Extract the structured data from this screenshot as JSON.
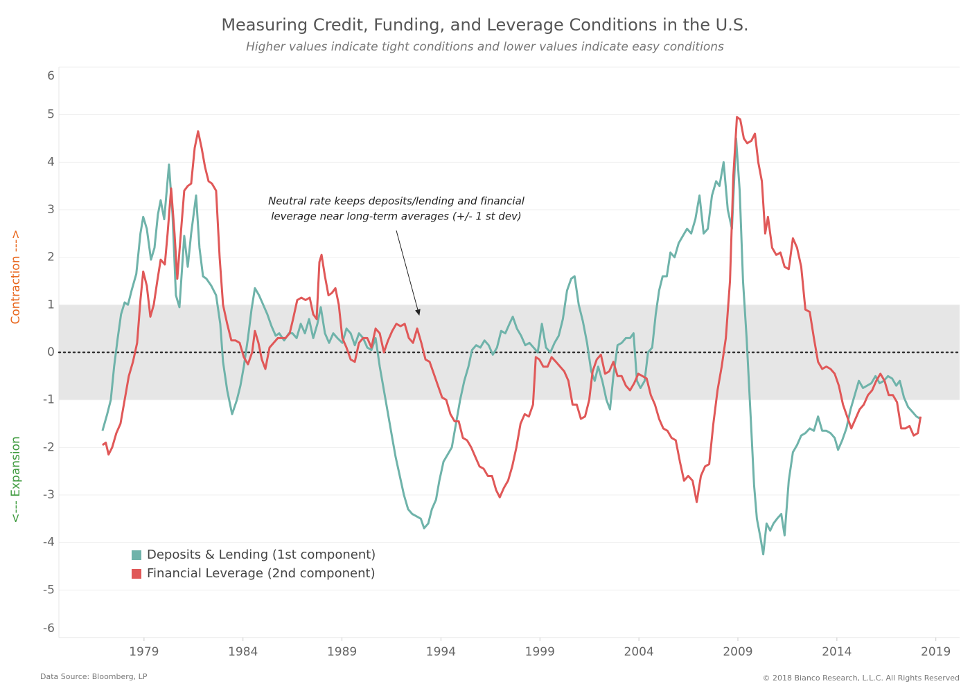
{
  "chart_data": {
    "type": "line",
    "title": "Measuring Credit, Funding, and Leverage Conditions in the U.S.",
    "subtitle": "Higher values indicate tight conditions and lower values indicate easy conditions",
    "y_label_upper": "Contraction --->",
    "y_label_lower": "<--- Expansion",
    "annotation": [
      "Neutral rate keeps deposits/lending and financial",
      "leverage near long-term averages (+/- 1 st dev)"
    ],
    "source": "Data Source: Bloomberg, LP",
    "copyright": "© 2018 Bianco Research, L.L.C. All Rights Reserved",
    "xlim": [
      1974.7,
      2020.2
    ],
    "xticks": [
      1979,
      1984,
      1989,
      1994,
      1999,
      2004,
      2009,
      2014,
      2019
    ],
    "ylim": [
      -6,
      6
    ],
    "yticks": [
      -6,
      -5,
      -4,
      -3,
      -2,
      -1,
      0,
      1,
      2,
      3,
      4,
      5,
      6
    ],
    "band": [
      -1,
      1
    ],
    "reference_line": 0,
    "grid": true,
    "legend": "lower-left",
    "series": [
      {
        "name": "Deposits & Lending (1st component)",
        "color": "#6fb3aa",
        "x": [
          1976.9,
          1977.14,
          1977.32,
          1977.49,
          1977.67,
          1977.84,
          1978.02,
          1978.19,
          1978.37,
          1978.61,
          1978.82,
          1978.96,
          1979.14,
          1979.35,
          1979.53,
          1979.7,
          1979.84,
          1980.02,
          1980.26,
          1980.44,
          1980.61,
          1980.79,
          1981.03,
          1981.21,
          1981.38,
          1981.63,
          1981.8,
          1981.98,
          1982.15,
          1982.4,
          1982.64,
          1982.85,
          1982.99,
          1983.2,
          1983.45,
          1983.69,
          1983.87,
          1984.04,
          1984.25,
          1984.43,
          1984.6,
          1984.81,
          1985.02,
          1985.23,
          1985.44,
          1985.65,
          1985.83,
          1986.08,
          1986.32,
          1986.5,
          1986.71,
          1986.92,
          1987.13,
          1987.34,
          1987.55,
          1987.76,
          1987.93,
          1988.14,
          1988.35,
          1988.56,
          1988.77,
          1989.02,
          1989.23,
          1989.44,
          1989.65,
          1989.86,
          1990.07,
          1990.28,
          1990.49,
          1990.7,
          1990.91,
          1991.12,
          1991.33,
          1991.54,
          1991.71,
          1991.92,
          1992.13,
          1992.34,
          1992.55,
          1992.77,
          1992.98,
          1993.15,
          1993.36,
          1993.54,
          1993.75,
          1993.92,
          1994.13,
          1994.34,
          1994.55,
          1994.76,
          1994.97,
          1995.18,
          1995.39,
          1995.57,
          1995.78,
          1995.99,
          1996.2,
          1996.41,
          1996.62,
          1996.83,
          1997.04,
          1997.25,
          1997.46,
          1997.63,
          1997.84,
          1998.05,
          1998.26,
          1998.47,
          1998.68,
          1998.89,
          1999.1,
          1999.31,
          1999.53,
          1999.74,
          1999.95,
          2000.16,
          2000.37,
          2000.58,
          2000.75,
          2000.96,
          2001.17,
          2001.38,
          2001.59,
          2001.77,
          2001.94,
          2002.15,
          2002.36,
          2002.54,
          2002.71,
          2002.92,
          2003.13,
          2003.34,
          2003.55,
          2003.73,
          2003.9,
          2004.08,
          2004.29,
          2004.46,
          2004.67,
          2004.85,
          2005.02,
          2005.2,
          2005.41,
          2005.59,
          2005.8,
          2006.01,
          2006.22,
          2006.43,
          2006.64,
          2006.85,
          2007.06,
          2007.27,
          2007.48,
          2007.69,
          2007.9,
          2008.07,
          2008.28,
          2008.49,
          2008.7,
          2008.91,
          2009.09,
          2009.26,
          2009.44,
          2009.65,
          2009.82,
          2009.96,
          2010.14,
          2010.28,
          2010.45,
          2010.63,
          2010.8,
          2010.98,
          2011.19,
          2011.36,
          2011.57,
          2011.78,
          2011.99,
          2012.2,
          2012.41,
          2012.63,
          2012.84,
          2013.05,
          2013.26,
          2013.47,
          2013.68,
          2013.89,
          2014.06,
          2014.27,
          2014.48,
          2014.69,
          2014.9,
          2015.11,
          2015.32,
          2015.53,
          2015.74,
          2015.95,
          2016.16,
          2016.37,
          2016.58,
          2016.79,
          2017,
          2017.18,
          2017.39,
          2017.6,
          2017.81,
          2018.02,
          2018.23
        ],
        "values": [
          -1.65,
          -1.3,
          -1,
          -0.3,
          0.3,
          0.8,
          1.05,
          1,
          1.3,
          1.65,
          2.5,
          2.85,
          2.6,
          1.95,
          2.2,
          2.9,
          3.2,
          2.8,
          3.95,
          2.9,
          1.2,
          0.95,
          2.45,
          1.8,
          2.5,
          3.3,
          2.2,
          1.6,
          1.55,
          1.4,
          1.2,
          0.6,
          -0.2,
          -0.8,
          -1.3,
          -1,
          -0.7,
          -0.3,
          0.3,
          0.9,
          1.35,
          1.2,
          1,
          0.8,
          0.55,
          0.35,
          0.4,
          0.25,
          0.4,
          0.4,
          0.3,
          0.6,
          0.4,
          0.7,
          0.3,
          0.6,
          0.95,
          0.4,
          0.2,
          0.4,
          0.3,
          0.2,
          0.5,
          0.4,
          0.15,
          0.4,
          0.3,
          0.1,
          0.05,
          0.3,
          -0.3,
          -0.8,
          -1.3,
          -1.8,
          -2.2,
          -2.6,
          -3,
          -3.3,
          -3.4,
          -3.45,
          -3.5,
          -3.7,
          -3.6,
          -3.3,
          -3.1,
          -2.7,
          -2.3,
          -2.15,
          -2,
          -1.5,
          -1,
          -0.6,
          -0.3,
          0.05,
          0.15,
          0.1,
          0.25,
          0.15,
          -0.05,
          0.1,
          0.45,
          0.4,
          0.6,
          0.75,
          0.5,
          0.35,
          0.15,
          0.2,
          0.1,
          0,
          0.6,
          0.1,
          0,
          0.2,
          0.35,
          0.7,
          1.3,
          1.55,
          1.6,
          1,
          0.65,
          0.2,
          -0.4,
          -0.6,
          -0.3,
          -0.6,
          -1,
          -1.2,
          -0.5,
          0.15,
          0.2,
          0.3,
          0.3,
          0.4,
          -0.6,
          -0.75,
          -0.6,
          0,
          0.1,
          0.8,
          1.3,
          1.6,
          1.6,
          2.1,
          2,
          2.3,
          2.45,
          2.6,
          2.5,
          2.8,
          3.3,
          2.5,
          2.6,
          3.3,
          3.6,
          3.5,
          4,
          3,
          2.6,
          4.5,
          3.4,
          1.5,
          0.3,
          -1.4,
          -2.8,
          -3.5,
          -3.9,
          -4.25,
          -3.6,
          -3.75,
          -3.6,
          -3.5,
          -3.4,
          -3.85,
          -2.7,
          -2.1,
          -1.95,
          -1.75,
          -1.7,
          -1.6,
          -1.65,
          -1.35,
          -1.65,
          -1.65,
          -1.7,
          -1.8,
          -2.05,
          -1.85,
          -1.6,
          -1.2,
          -0.9,
          -0.6,
          -0.75,
          -0.7,
          -0.65,
          -0.5,
          -0.65,
          -0.6,
          -0.5,
          -0.55,
          -0.7,
          -0.6,
          -0.95,
          -1.15,
          -1.25,
          -1.35,
          -1.4
        ]
      },
      {
        "name": "Financial Leverage (2nd component)",
        "color": "#e05858",
        "x": [
          1976.9,
          1977.07,
          1977.21,
          1977.39,
          1977.6,
          1977.81,
          1978.02,
          1978.23,
          1978.44,
          1978.65,
          1978.82,
          1978.96,
          1979.14,
          1979.32,
          1979.49,
          1979.67,
          1979.84,
          1980.05,
          1980.19,
          1980.37,
          1980.54,
          1980.68,
          1980.86,
          1981.03,
          1981.21,
          1981.38,
          1981.56,
          1981.73,
          1981.91,
          1982.08,
          1982.26,
          1982.43,
          1982.64,
          1982.82,
          1982.99,
          1983.2,
          1983.41,
          1983.62,
          1983.83,
          1984.04,
          1984.25,
          1984.46,
          1984.6,
          1984.78,
          1984.95,
          1985.13,
          1985.34,
          1985.55,
          1985.76,
          1985.97,
          1986.15,
          1986.36,
          1986.53,
          1986.74,
          1986.95,
          1987.16,
          1987.37,
          1987.55,
          1987.72,
          1987.86,
          1987.97,
          1988.14,
          1988.32,
          1988.49,
          1988.67,
          1988.84,
          1989.02,
          1989.23,
          1989.44,
          1989.65,
          1989.86,
          1990.07,
          1990.28,
          1990.49,
          1990.7,
          1990.91,
          1991.12,
          1991.33,
          1991.54,
          1991.75,
          1991.96,
          1992.17,
          1992.38,
          1992.59,
          1992.8,
          1993.01,
          1993.22,
          1993.43,
          1993.64,
          1993.85,
          1994.06,
          1994.27,
          1994.48,
          1994.69,
          1994.9,
          1995.11,
          1995.32,
          1995.53,
          1995.74,
          1995.95,
          1996.16,
          1996.37,
          1996.58,
          1996.79,
          1996.97,
          1997.18,
          1997.39,
          1997.6,
          1997.81,
          1998.02,
          1998.23,
          1998.44,
          1998.65,
          1998.79,
          1998.97,
          1999.17,
          1999.39,
          1999.59,
          1999.81,
          2000.02,
          2000.23,
          2000.44,
          2000.65,
          2000.86,
          2001.07,
          2001.28,
          2001.49,
          2001.66,
          2001.87,
          2002.08,
          2002.29,
          2002.5,
          2002.71,
          2002.92,
          2003.13,
          2003.34,
          2003.55,
          2003.76,
          2003.97,
          2004.18,
          2004.39,
          2004.6,
          2004.81,
          2005.02,
          2005.23,
          2005.44,
          2005.65,
          2005.86,
          2006.07,
          2006.28,
          2006.49,
          2006.71,
          2006.92,
          2007.13,
          2007.34,
          2007.55,
          2007.76,
          2007.97,
          2008.18,
          2008.39,
          2008.6,
          2008.77,
          2008.95,
          2009.12,
          2009.3,
          2009.47,
          2009.68,
          2009.86,
          2010.03,
          2010.21,
          2010.38,
          2010.52,
          2010.73,
          2010.94,
          2011.15,
          2011.36,
          2011.57,
          2011.78,
          2011.99,
          2012.2,
          2012.41,
          2012.63,
          2012.84,
          2013.05,
          2013.26,
          2013.47,
          2013.68,
          2013.89,
          2014.1,
          2014.31,
          2014.52,
          2014.73,
          2014.94,
          2015.15,
          2015.36,
          2015.57,
          2015.78,
          2015.99,
          2016.2,
          2016.41,
          2016.62,
          2016.83,
          2017.04,
          2017.25,
          2017.46,
          2017.67,
          2017.88,
          2018.09,
          2018.23
        ],
        "values": [
          -1.95,
          -1.9,
          -2.15,
          -2,
          -1.7,
          -1.5,
          -1,
          -0.5,
          -0.2,
          0.2,
          1.1,
          1.7,
          1.4,
          0.75,
          1,
          1.5,
          1.95,
          1.85,
          2.5,
          3.45,
          2.5,
          1.55,
          2.5,
          3.4,
          3.5,
          3.55,
          4.3,
          4.65,
          4.3,
          3.9,
          3.6,
          3.55,
          3.4,
          2,
          1,
          0.6,
          0.25,
          0.25,
          0.2,
          -0.1,
          -0.25,
          0,
          0.45,
          0.2,
          -0.15,
          -0.35,
          0.1,
          0.2,
          0.3,
          0.3,
          0.3,
          0.4,
          0.7,
          1.1,
          1.15,
          1.1,
          1.15,
          0.8,
          0.7,
          1.9,
          2.05,
          1.6,
          1.2,
          1.25,
          1.35,
          1,
          0.3,
          0.1,
          -0.15,
          -0.2,
          0.2,
          0.3,
          0.3,
          0.1,
          0.5,
          0.4,
          0,
          0.25,
          0.45,
          0.6,
          0.55,
          0.6,
          0.3,
          0.2,
          0.5,
          0.2,
          -0.15,
          -0.2,
          -0.45,
          -0.7,
          -0.95,
          -1,
          -1.3,
          -1.45,
          -1.45,
          -1.8,
          -1.85,
          -2,
          -2.2,
          -2.4,
          -2.45,
          -2.6,
          -2.6,
          -2.9,
          -3.05,
          -2.85,
          -2.7,
          -2.4,
          -2,
          -1.5,
          -1.3,
          -1.35,
          -1.1,
          -0.1,
          -0.15,
          -0.3,
          -0.3,
          -0.1,
          -0.2,
          -0.3,
          -0.4,
          -0.6,
          -1.1,
          -1.1,
          -1.4,
          -1.35,
          -1,
          -0.4,
          -0.15,
          -0.05,
          -0.45,
          -0.4,
          -0.2,
          -0.5,
          -0.5,
          -0.7,
          -0.8,
          -0.65,
          -0.45,
          -0.5,
          -0.55,
          -0.9,
          -1.1,
          -1.4,
          -1.6,
          -1.65,
          -1.8,
          -1.85,
          -2.3,
          -2.7,
          -2.6,
          -2.7,
          -3.15,
          -2.6,
          -2.4,
          -2.35,
          -1.5,
          -0.8,
          -0.3,
          0.3,
          1.5,
          3.7,
          4.95,
          4.9,
          4.5,
          4.4,
          4.45,
          4.6,
          4,
          3.6,
          2.5,
          2.85,
          2.2,
          2.05,
          2.1,
          1.8,
          1.75,
          2.4,
          2.2,
          1.8,
          0.9,
          0.85,
          0.3,
          -0.2,
          -0.35,
          -0.3,
          -0.35,
          -0.45,
          -0.7,
          -1.1,
          -1.35,
          -1.6,
          -1.4,
          -1.2,
          -1.1,
          -0.9,
          -0.8,
          -0.6,
          -0.45,
          -0.6,
          -0.9,
          -0.9,
          -1.05,
          -1.6,
          -1.6,
          -1.55,
          -1.75,
          -1.7,
          -1.35
        ]
      }
    ]
  }
}
